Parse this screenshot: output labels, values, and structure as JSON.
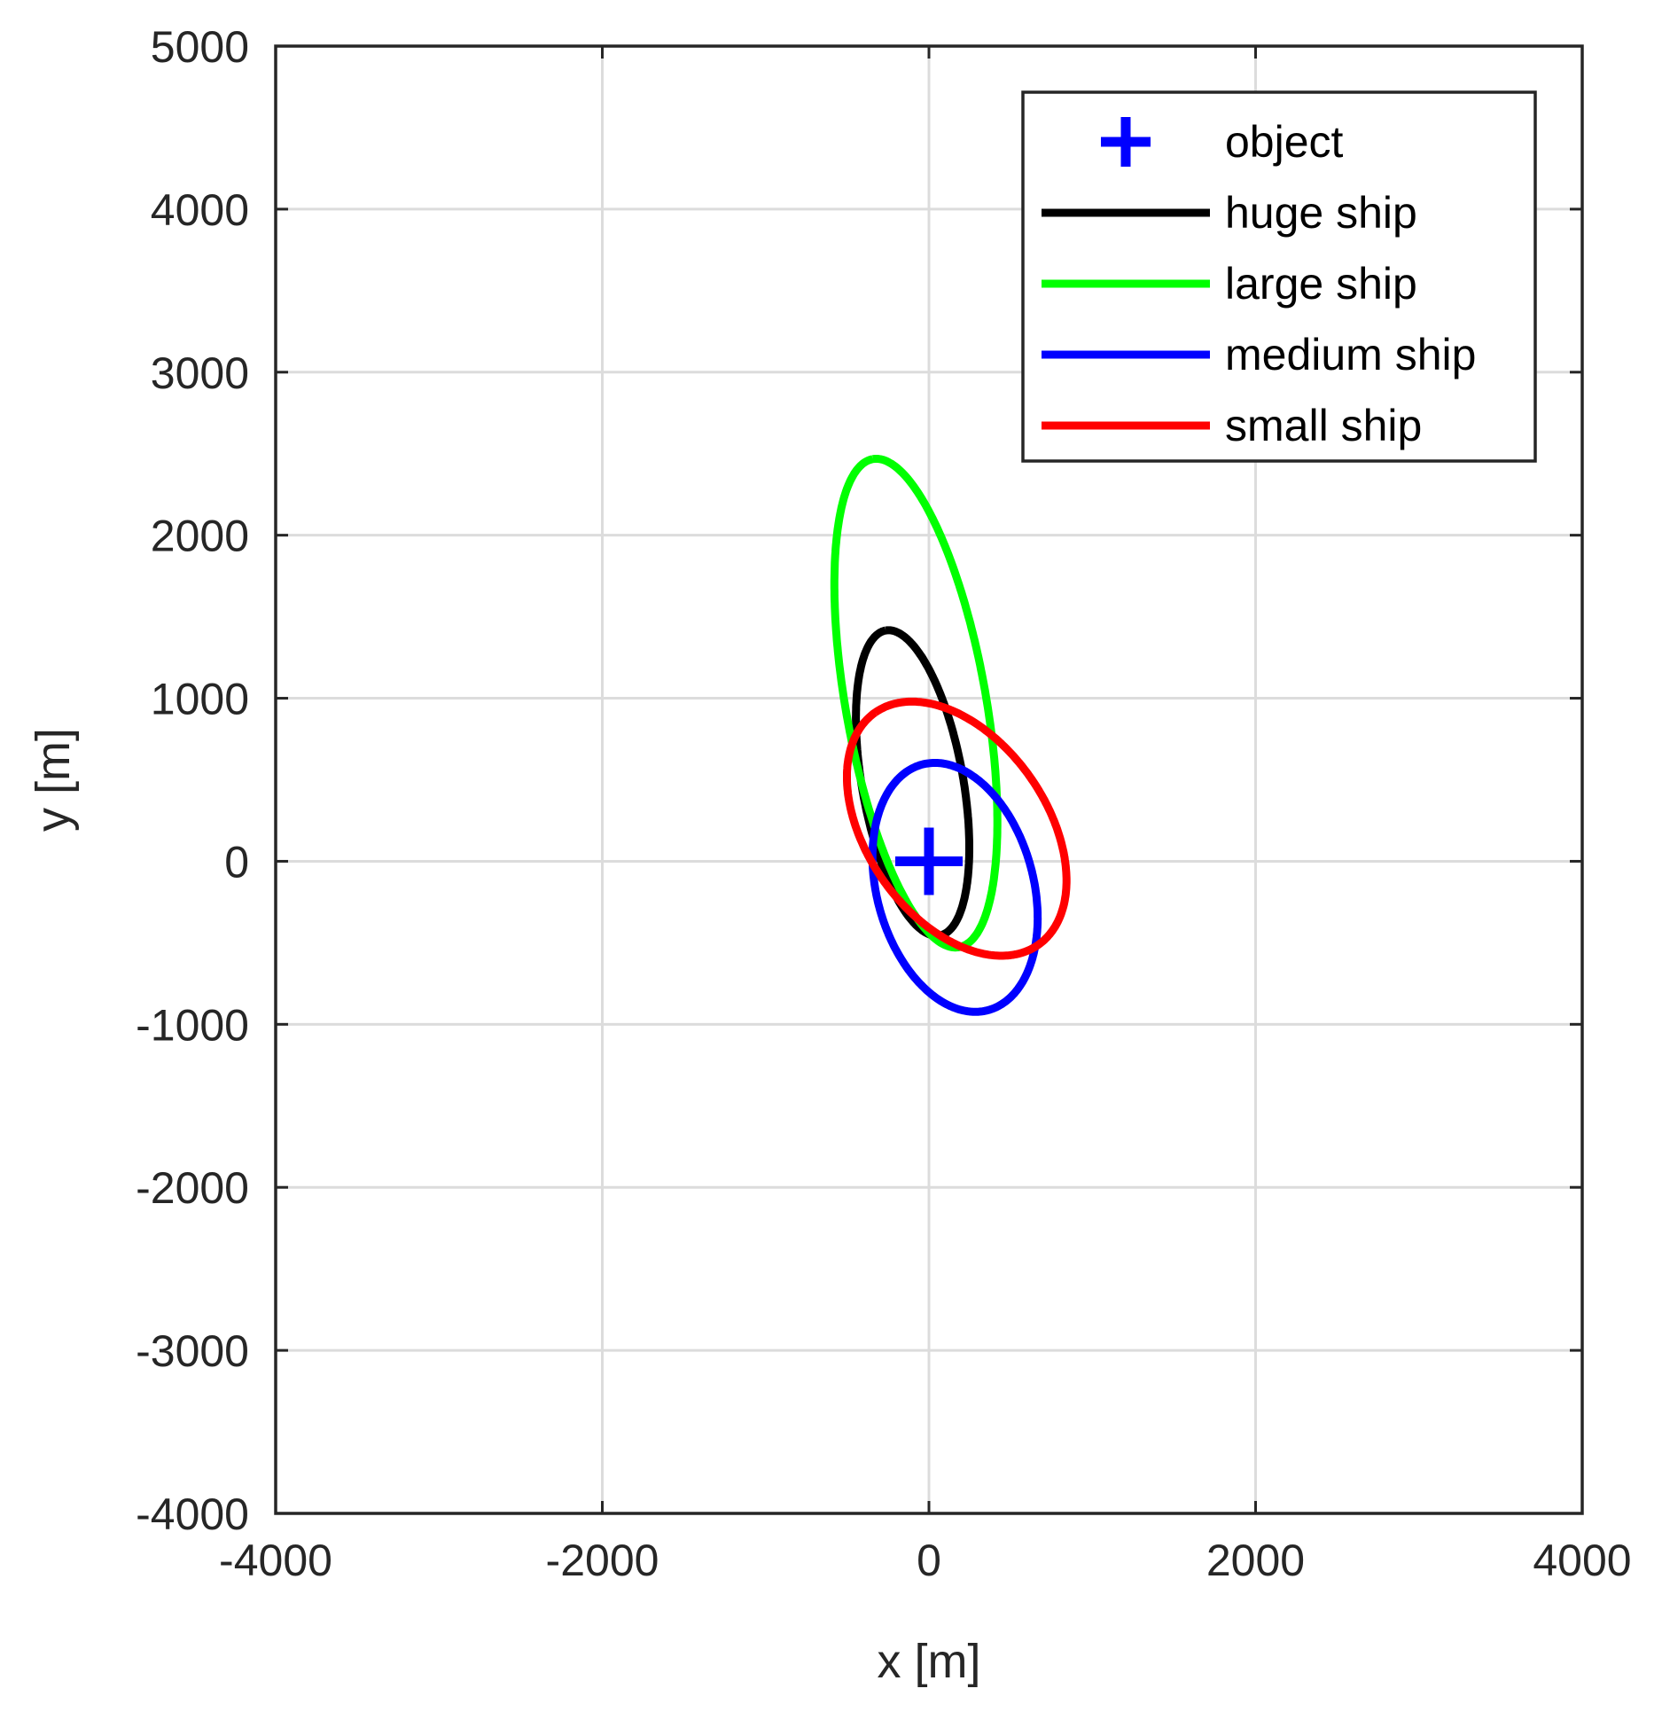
{
  "chart_data": {
    "type": "line",
    "xlabel": "x [m]",
    "ylabel": "y [m]",
    "xlim": [
      -4000,
      4000
    ],
    "ylim": [
      -4000,
      5000
    ],
    "xticks": [
      -4000,
      -2000,
      0,
      2000,
      4000
    ],
    "yticks": [
      -4000,
      -3000,
      -2000,
      -1000,
      0,
      1000,
      2000,
      3000,
      4000,
      5000
    ],
    "grid": true,
    "legend_position": "top-right",
    "object": {
      "name": "object",
      "x": 0,
      "y": 0,
      "color": "#0000ff",
      "marker": "plus"
    },
    "series": [
      {
        "name": "huge ship",
        "color": "#000000",
        "center": [
          -100,
          480
        ],
        "semi_major": 950,
        "semi_minor": 310,
        "angle_deg": 100
      },
      {
        "name": "large ship",
        "color": "#00ff00",
        "center": [
          -80,
          970
        ],
        "semi_major": 1520,
        "semi_minor": 430,
        "angle_deg": 100
      },
      {
        "name": "medium ship",
        "color": "#0000ff",
        "center": [
          160,
          -160
        ],
        "semi_major": 780,
        "semi_minor": 480,
        "angle_deg": 105
      },
      {
        "name": "small ship",
        "color": "#ff0000",
        "center": [
          170,
          200
        ],
        "semi_major": 870,
        "semi_minor": 550,
        "angle_deg": 125
      }
    ]
  }
}
